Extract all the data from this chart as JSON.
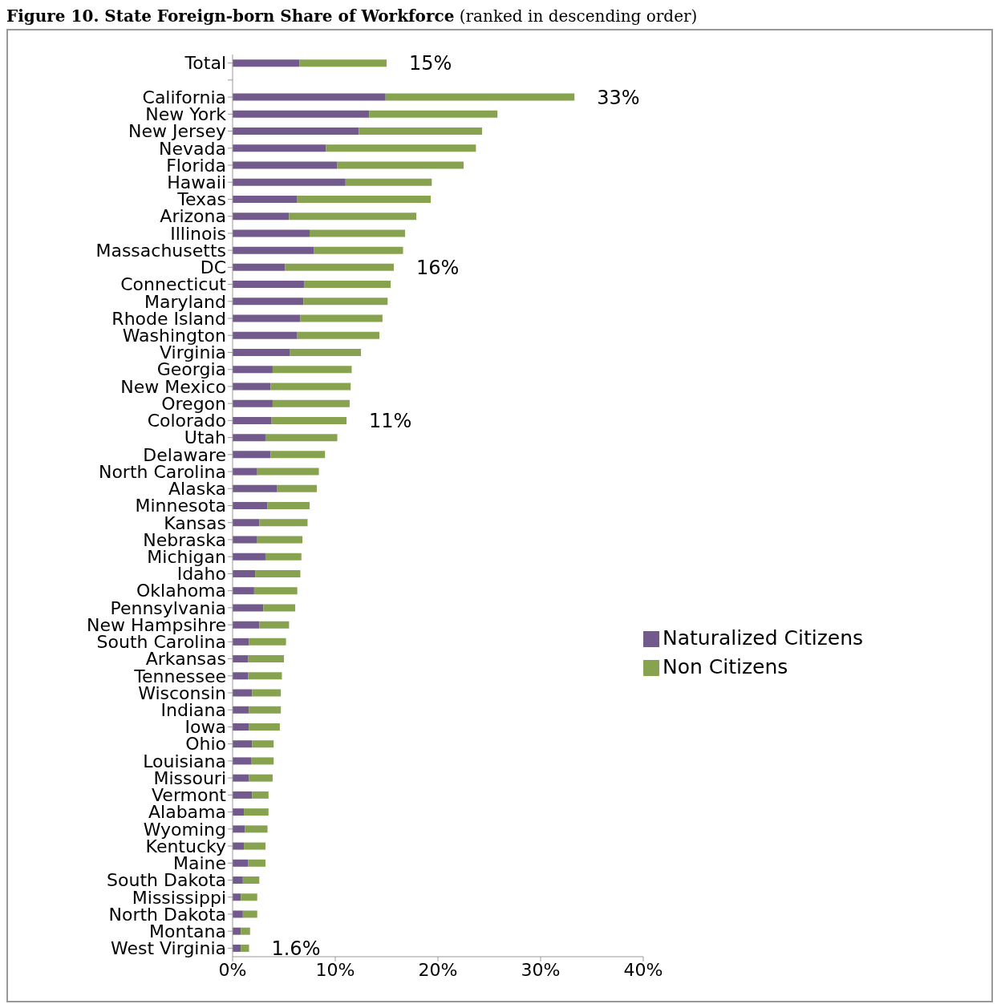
{
  "chart_data": {
    "type": "bar",
    "orientation": "horizontal",
    "stacked": true,
    "title": "Figure 10. State Foreign-born Share of Workforce",
    "subtitle": "(ranked in descending order)",
    "categories": [
      "Total",
      null,
      "California",
      "New York",
      "New Jersey",
      "Nevada",
      "Florida",
      "Hawaii",
      "Texas",
      "Arizona",
      "Illinois",
      "Massachusetts",
      "DC",
      "Connecticut",
      "Maryland",
      "Rhode Island",
      "Washington",
      "Virginia",
      "Georgia",
      "New Mexico",
      "Oregon",
      "Colorado",
      "Utah",
      "Delaware",
      "North Carolina",
      "Alaska",
      "Minnesota",
      "Kansas",
      "Nebraska",
      "Michigan",
      "Idaho",
      "Oklahoma",
      "Pennsylvania",
      "New Hampsihre",
      "South Carolina",
      "Arkansas",
      "Tennessee",
      "Wisconsin",
      "Indiana",
      "Iowa",
      "Ohio",
      "Louisiana",
      "Missouri",
      "Vermont",
      "Alabama",
      "Wyoming",
      "Kentucky",
      "Maine",
      "South Dakota",
      "Mississippi",
      "North Dakota",
      "Montana",
      "West Virginia"
    ],
    "series": [
      {
        "name": "Naturalized Citizens",
        "color": "#725a8c",
        "values": [
          6.5,
          null,
          14.9,
          13.3,
          12.3,
          9.1,
          10.2,
          11.0,
          6.3,
          5.5,
          7.5,
          7.9,
          5.1,
          7.0,
          6.9,
          6.6,
          6.3,
          5.6,
          3.9,
          3.7,
          3.9,
          3.8,
          3.2,
          3.7,
          2.4,
          4.3,
          3.4,
          2.6,
          2.4,
          3.2,
          2.2,
          2.1,
          3.0,
          2.6,
          1.6,
          1.5,
          1.5,
          1.9,
          1.6,
          1.6,
          1.9,
          1.8,
          1.6,
          1.9,
          1.1,
          1.2,
          1.1,
          1.5,
          1.0,
          0.8,
          1.0,
          0.8,
          0.8
        ]
      },
      {
        "name": "Non Citizens",
        "color": "#87a34f",
        "values": [
          8.5,
          null,
          18.4,
          12.5,
          12.0,
          14.6,
          12.3,
          8.4,
          13.0,
          12.4,
          9.3,
          8.7,
          10.6,
          8.4,
          8.2,
          8.0,
          8.0,
          6.9,
          7.7,
          7.8,
          7.5,
          7.3,
          7.0,
          5.3,
          6.0,
          3.9,
          4.1,
          4.7,
          4.4,
          3.5,
          4.4,
          4.2,
          3.1,
          2.9,
          3.6,
          3.5,
          3.3,
          2.8,
          3.1,
          3.0,
          2.1,
          2.2,
          2.3,
          1.6,
          2.4,
          2.2,
          2.1,
          1.7,
          1.6,
          1.6,
          1.4,
          0.9,
          0.8
        ]
      }
    ],
    "xlim": [
      0,
      40
    ],
    "xticks": [
      {
        "value": 0,
        "label": "0%"
      },
      {
        "value": 10,
        "label": "10%"
      },
      {
        "value": 20,
        "label": "20%"
      },
      {
        "value": 30,
        "label": "30%"
      },
      {
        "value": 40,
        "label": "40%"
      }
    ],
    "annotations": [
      {
        "text": "15%",
        "x": 15.0,
        "y": "Total"
      },
      {
        "text": "33%",
        "x": 33.3,
        "y": "California"
      },
      {
        "text": "16%",
        "x": 15.7,
        "y": "DC"
      },
      {
        "text": "11%",
        "x": 11.1,
        "y": "Colorado"
      },
      {
        "text": "1.6%",
        "x": 1.6,
        "y": "West Virginia"
      }
    ],
    "legend": "right",
    "grid": false
  }
}
